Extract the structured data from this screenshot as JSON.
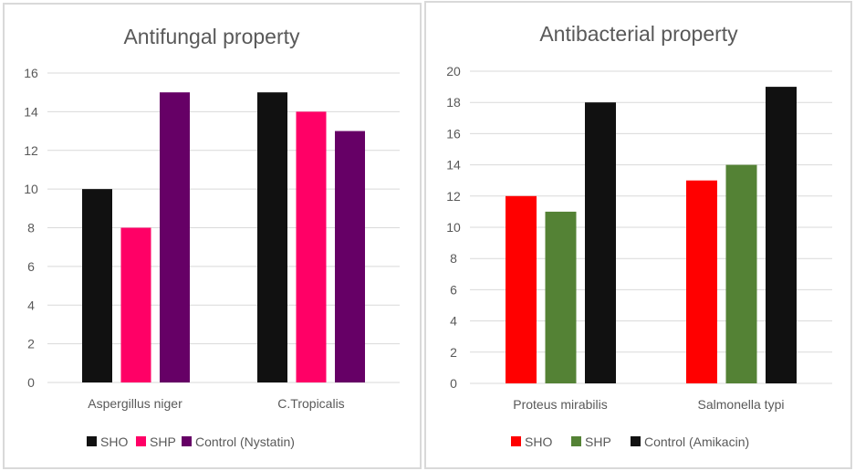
{
  "chart_data": [
    {
      "type": "bar",
      "title": "Antifungal property",
      "categories": [
        "Aspergillus niger",
        "C.Tropicalis"
      ],
      "series": [
        {
          "name": "SHO",
          "color": "#111111",
          "values": [
            10,
            15
          ]
        },
        {
          "name": "SHP",
          "color": "#ff0066",
          "values": [
            8,
            14
          ]
        },
        {
          "name": "Control (Nystatin)",
          "color": "#660066",
          "values": [
            15,
            13
          ]
        }
      ],
      "xlabel": "",
      "ylabel": "",
      "ylim": [
        0,
        16
      ],
      "yticks": [
        0,
        2,
        4,
        6,
        8,
        10,
        12,
        14,
        16
      ],
      "grid": true,
      "legend": "bottom"
    },
    {
      "type": "bar",
      "title": "Antibacterial property",
      "categories": [
        "Proteus mirabilis",
        "Salmonella typi"
      ],
      "series": [
        {
          "name": "SHO",
          "color": "#ff0000",
          "values": [
            12,
            13
          ]
        },
        {
          "name": "SHP",
          "color": "#548235",
          "values": [
            11,
            14
          ]
        },
        {
          "name": "Control (Amikacin)",
          "color": "#111111",
          "values": [
            18,
            19
          ]
        }
      ],
      "xlabel": "",
      "ylabel": "",
      "ylim": [
        0,
        20
      ],
      "yticks": [
        0,
        2,
        4,
        6,
        8,
        10,
        12,
        14,
        16,
        18,
        20
      ],
      "grid": true,
      "legend": "bottom"
    }
  ]
}
